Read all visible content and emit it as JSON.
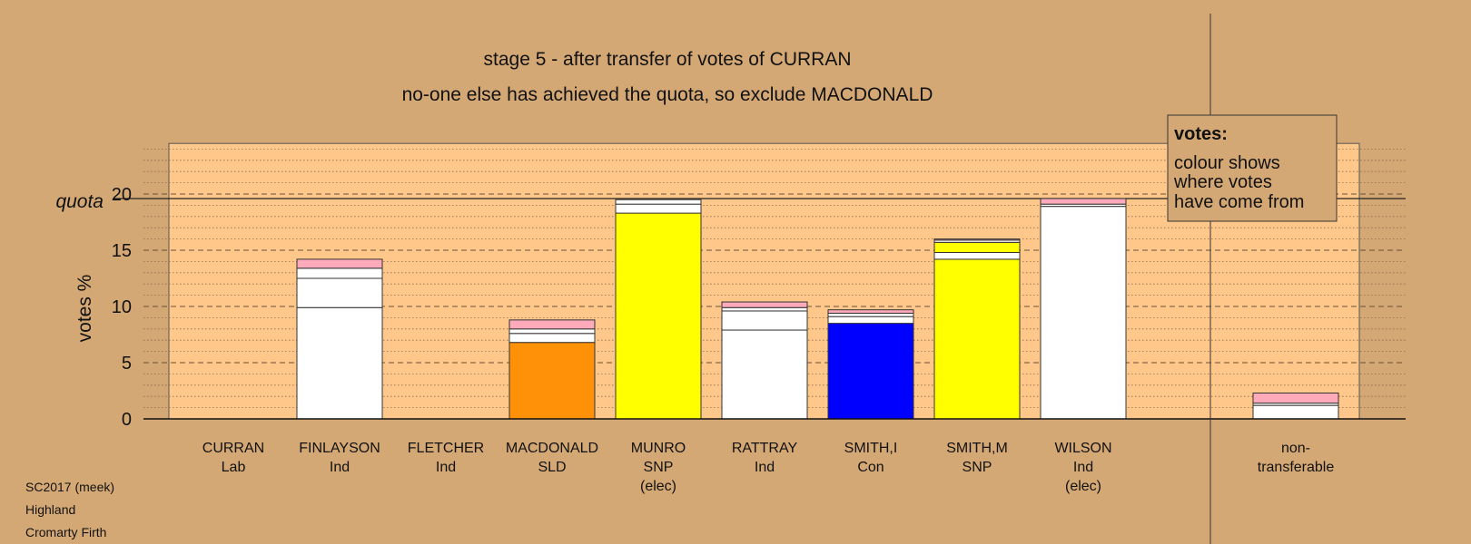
{
  "chart_data": {
    "type": "bar",
    "stacked": true,
    "title": "stage 5 - after transfer of votes of CURRAN",
    "subtitle": "no-one else has achieved the quota, so exclude MACDONALD",
    "ylabel": "votes %",
    "quota_label": "quota",
    "quota": 20,
    "ylim": [
      0,
      24.5
    ],
    "yticks": [
      0,
      5,
      10,
      15,
      20
    ],
    "grid": true,
    "legend": {
      "title": "votes:",
      "lines": [
        "colour shows",
        "where votes",
        "have come from"
      ],
      "placement": "top-right"
    },
    "colors": {
      "Ind": "#ffffff",
      "SNP": "#ffff00",
      "SLD": "#ff9108",
      "Con": "#0000ff",
      "Lab": "#ffaabb",
      "background": "#d4a874",
      "plot_bg": "#ffc88a"
    },
    "categories": [
      {
        "name": "CURRAN",
        "party": "Lab",
        "note": "",
        "segments": []
      },
      {
        "name": "FINLAYSON",
        "party": "Ind",
        "note": "",
        "segments": [
          {
            "from": "Ind",
            "value": 9.9
          },
          {
            "from": "Ind",
            "value": 2.6
          },
          {
            "from": "Ind",
            "value": 0.9
          },
          {
            "from": "Lab",
            "value": 0.8
          }
        ]
      },
      {
        "name": "FLETCHER",
        "party": "Ind",
        "note": "",
        "segments": []
      },
      {
        "name": "MACDONALD",
        "party": "SLD",
        "note": "",
        "segments": [
          {
            "from": "SLD",
            "value": 6.8
          },
          {
            "from": "Ind",
            "value": 0.8
          },
          {
            "from": "Ind",
            "value": 0.4
          },
          {
            "from": "Lab",
            "value": 0.8
          }
        ]
      },
      {
        "name": "MUNRO",
        "party": "SNP",
        "note": "(elec)",
        "segments": [
          {
            "from": "SNP",
            "value": 18.3
          },
          {
            "from": "Ind",
            "value": 0.8
          },
          {
            "from": "Ind",
            "value": 0.4
          }
        ]
      },
      {
        "name": "RATTRAY",
        "party": "Ind",
        "note": "",
        "segments": [
          {
            "from": "Ind",
            "value": 7.9
          },
          {
            "from": "Ind",
            "value": 1.7
          },
          {
            "from": "Ind",
            "value": 0.3
          },
          {
            "from": "Lab",
            "value": 0.5
          }
        ]
      },
      {
        "name": "SMITH,I",
        "party": "Con",
        "note": "",
        "segments": [
          {
            "from": "Con",
            "value": 8.5
          },
          {
            "from": "Ind",
            "value": 0.6
          },
          {
            "from": "Ind",
            "value": 0.3
          },
          {
            "from": "Lab",
            "value": 0.3
          }
        ]
      },
      {
        "name": "SMITH,M",
        "party": "SNP",
        "note": "",
        "segments": [
          {
            "from": "SNP",
            "value": 14.2
          },
          {
            "from": "Ind",
            "value": 0.6
          },
          {
            "from": "SNP",
            "value": 0.9
          },
          {
            "from": "Ind",
            "value": 0.2
          },
          {
            "from": "Lab",
            "value": 0.1
          }
        ]
      },
      {
        "name": "WILSON",
        "party": "Ind",
        "note": "(elec)",
        "segments": [
          {
            "from": "Ind",
            "value": 18.9
          },
          {
            "from": "Ind",
            "value": 0.2
          },
          {
            "from": "Lab",
            "value": 0.5
          }
        ]
      }
    ],
    "nontransferable": {
      "label_lines": [
        "non-",
        "transferable"
      ],
      "segments": [
        {
          "from": "Ind",
          "value": 1.2
        },
        {
          "from": "Ind",
          "value": 0.2
        },
        {
          "from": "Lab",
          "value": 0.9
        }
      ]
    }
  },
  "footer": {
    "lines": [
      "SC2017 (meek)",
      "Highland",
      "Cromarty Firth"
    ]
  }
}
